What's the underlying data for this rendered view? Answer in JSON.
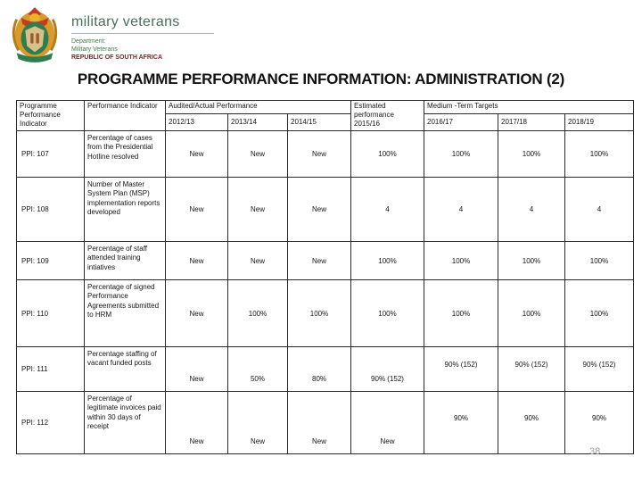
{
  "logo": {
    "brand_name": "military veterans",
    "dept_line1": "Department:",
    "dept_line2": "Military Veterans",
    "dept_line3": "REPUBLIC OF SOUTH AFRICA"
  },
  "colors": {
    "brand_green": "#4a6e5c",
    "dept_green": "#3e7d46",
    "republic_red": "#8a1f2a",
    "emblem_gold": "#d99a2b",
    "emblem_green": "#2e7d4f",
    "emblem_red": "#c43b21"
  },
  "title": "PROGRAMME PERFORMANCE INFORMATION:  ADMINISTRATION (2)",
  "page_number": "38",
  "table": {
    "header": {
      "col_programme": "Programme Performance Indicator",
      "col_indicator": "Performance Indicator",
      "audited_group": "Audited/Actual Performance",
      "audited_years": [
        "2012/13",
        "2013/14",
        "2014/15"
      ],
      "estimated": "Estimated performance 2015/16",
      "targets_group": "Medium -Term Targets",
      "target_years": [
        "2016/17",
        "2017/18",
        "2018/19"
      ]
    },
    "rows": [
      {
        "ppi": "PPI: 107",
        "indicator": "Percentage of cases from the Presidential Hotline resolved",
        "values": [
          "New",
          "New",
          "New",
          "100%",
          "100%",
          "100%",
          "100%"
        ]
      },
      {
        "ppi": "PPI: 108",
        "indicator": "Number of Master System Plan (MSP) implementation reports developed",
        "values": [
          "New",
          "New",
          "New",
          "4",
          "4",
          "4",
          "4"
        ]
      },
      {
        "ppi": "PPI: 109",
        "indicator": "Percentage of staff attended training intiatives",
        "values": [
          "New",
          "New",
          "New",
          "100%",
          "100%",
          "100%",
          "100%"
        ]
      },
      {
        "ppi": "PPI: 110",
        "indicator": "Percentage of signed Performance Agreements submitted to HRM",
        "values": [
          "New",
          "100%",
          "100%",
          "100%",
          "100%",
          "100%",
          "100%"
        ]
      },
      {
        "ppi": "PPI: 111",
        "indicator": "Percentage staffing of vacant funded posts",
        "values": [
          "New",
          "50%",
          "80%",
          "90% (152)",
          "90% (152)",
          "90% (152)",
          "90% (152)"
        ]
      },
      {
        "ppi": "PPI: 112",
        "indicator": "Percentage of legitimate invoices paid within 30 days of receipt",
        "values": [
          "New",
          "New",
          "New",
          "New",
          "90%",
          "90%",
          "90%"
        ]
      }
    ]
  }
}
